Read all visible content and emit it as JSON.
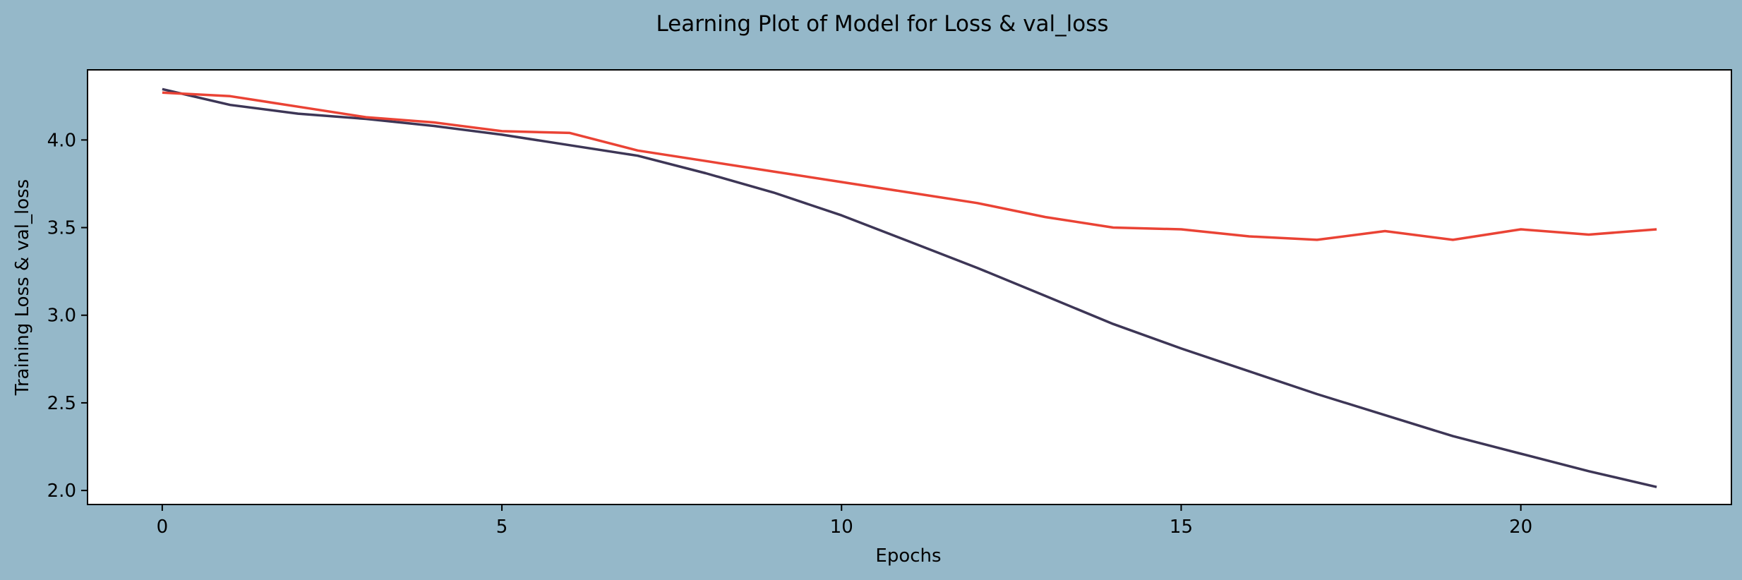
{
  "colors": {
    "figure_background": "#95B8C9",
    "plot_background": "#FFFFFF",
    "axes_edge": "#000000",
    "loss_line": "#3D3656",
    "val_loss_line": "#EA4335"
  },
  "chart_data": {
    "type": "line",
    "title": "Learning Plot of Model for Loss & val_loss",
    "xlabel": "Epochs",
    "ylabel": "Training Loss & val_loss",
    "xlim": [
      -1.1,
      23.1
    ],
    "ylim": [
      1.92,
      4.4
    ],
    "grid": false,
    "legend": null,
    "x_ticks": [
      0,
      5,
      10,
      15,
      20
    ],
    "x_tick_labels": [
      "0",
      "5",
      "10",
      "15",
      "20"
    ],
    "y_ticks": [
      2.0,
      2.5,
      3.0,
      3.5,
      4.0
    ],
    "y_tick_labels": [
      "2.0",
      "2.5",
      "3.0",
      "3.5",
      "4.0"
    ],
    "x": [
      0,
      1,
      2,
      3,
      4,
      5,
      6,
      7,
      8,
      9,
      10,
      11,
      12,
      13,
      14,
      15,
      16,
      17,
      18,
      19,
      20,
      21,
      22
    ],
    "series": [
      {
        "key": "loss",
        "values": [
          4.29,
          4.2,
          4.15,
          4.12,
          4.08,
          4.03,
          3.97,
          3.91,
          3.81,
          3.7,
          3.57,
          3.42,
          3.27,
          3.11,
          2.95,
          2.81,
          2.68,
          2.55,
          2.43,
          2.31,
          2.21,
          2.11,
          2.02
        ]
      },
      {
        "key": "val_loss",
        "values": [
          4.27,
          4.25,
          4.19,
          4.13,
          4.1,
          4.05,
          4.04,
          3.94,
          3.88,
          3.82,
          3.76,
          3.7,
          3.64,
          3.56,
          3.5,
          3.49,
          3.45,
          3.43,
          3.48,
          3.43,
          3.49,
          3.46,
          3.49
        ]
      }
    ]
  }
}
